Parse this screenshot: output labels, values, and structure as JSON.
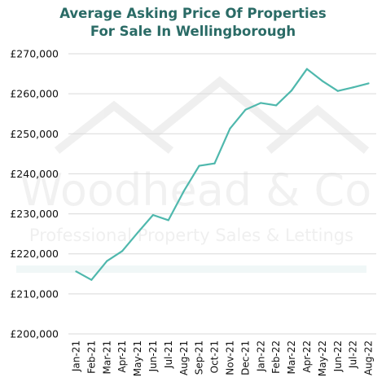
{
  "chart_data": {
    "type": "line",
    "title_lines": [
      "Average Asking Price Of Properties",
      "For Sale In Wellingborough"
    ],
    "xlabel": "",
    "ylabel": "",
    "categories": [
      "Jan-21",
      "Feb-21",
      "Mar-21",
      "Apr-21",
      "May-21",
      "Jun-21",
      "Jul-21",
      "Aug-21",
      "Sep-21",
      "Oct-21",
      "Nov-21",
      "Dec-21",
      "Jan-22",
      "Feb-22",
      "Mar-22",
      "Apr-22",
      "May-22",
      "Jun-22",
      "Jul-22",
      "Aug-22"
    ],
    "values": [
      215600,
      213500,
      218200,
      220700,
      225300,
      229700,
      228400,
      235700,
      242000,
      242600,
      251300,
      256000,
      257700,
      257100,
      260800,
      266200,
      263200,
      260700,
      261600,
      262600
    ],
    "ylim": [
      200000,
      270000
    ],
    "yticks": [
      200000,
      210000,
      220000,
      230000,
      240000,
      250000,
      260000,
      270000
    ],
    "ytick_labels": [
      "£200,000",
      "£210,000",
      "£220,000",
      "£230,000",
      "£240,000",
      "£250,000",
      "£260,000",
      "£270,000"
    ],
    "grid": "horizontal",
    "line_color": "#4fb8ad",
    "grid_color": "#d9d9d9"
  },
  "watermark": {
    "brand": "Woodhead & Co",
    "tagline": "Professional Property Sales & Lettings"
  }
}
